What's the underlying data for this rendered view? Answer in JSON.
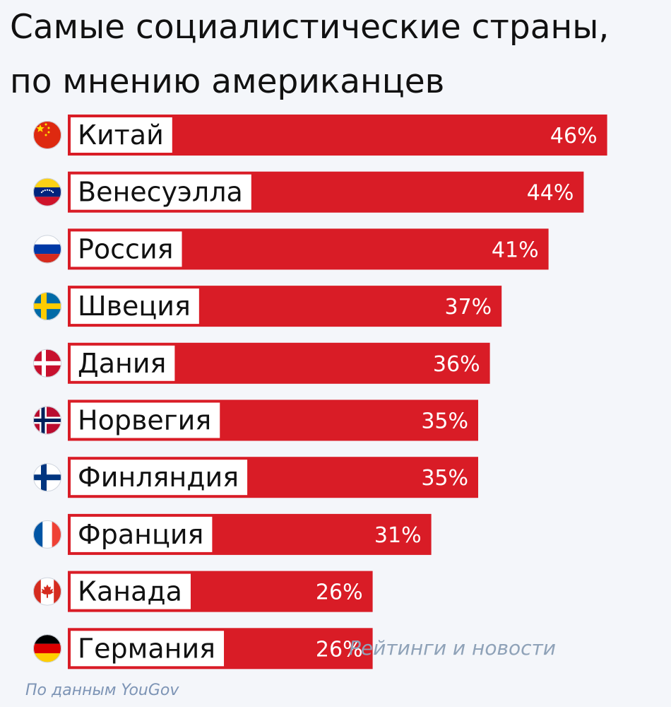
{
  "page": {
    "title_line1": "Самые социалистические страны,",
    "title_line2": "по мнению американцев",
    "credit": "Рейтинги и новости",
    "source": "По данным YouGov"
  },
  "chart_data": {
    "type": "bar",
    "orientation": "horizontal",
    "categories": [
      "Китай",
      "Венесуэлла",
      "Россия",
      "Швеция",
      "Дания",
      "Норвегия",
      "Финляндия",
      "Франция",
      "Канада",
      "Германия"
    ],
    "values": [
      46,
      44,
      41,
      37,
      36,
      35,
      35,
      31,
      26,
      26
    ],
    "value_labels": [
      "46%",
      "44%",
      "41%",
      "37%",
      "36%",
      "35%",
      "35%",
      "31%",
      "26%",
      "26%"
    ],
    "flag_icons": [
      "china-flag-icon",
      "venezuela-flag-icon",
      "russia-flag-icon",
      "sweden-flag-icon",
      "denmark-flag-icon",
      "norway-flag-icon",
      "finland-flag-icon",
      "france-flag-icon",
      "canada-flag-icon",
      "germany-flag-icon"
    ],
    "colors": {
      "bar": "#d91c26",
      "label_box": "#ffffff",
      "value_text": "#ffffff"
    },
    "grid": false,
    "legend": "none"
  }
}
